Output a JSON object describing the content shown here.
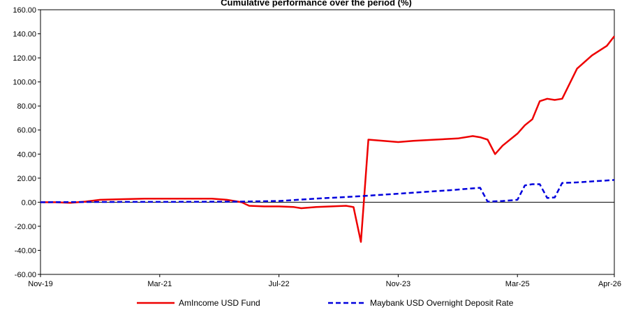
{
  "chart_data": {
    "type": "line",
    "title": "Cumulative performance over the period (%)",
    "xlabel": "",
    "ylabel": "",
    "ylim": [
      -60,
      160
    ],
    "y_ticks": [
      "-60.00",
      "-40.00",
      "-20.00",
      "0.00",
      "20.00",
      "40.00",
      "60.00",
      "80.00",
      "100.00",
      "120.00",
      "140.00",
      "160.00"
    ],
    "x_ticks": [
      "Nov-19",
      "Mar-21",
      "Jul-22",
      "Nov-23",
      "Mar-25",
      "Apr-26"
    ],
    "grid": false,
    "legend_position": "bottom",
    "series": [
      {
        "name": "AmIncome USD Fund",
        "color": "#ee0000",
        "style": "solid",
        "points": [
          [
            "2019-11",
            0
          ],
          [
            "2020-01",
            0
          ],
          [
            "2020-03",
            -0.5
          ],
          [
            "2020-05",
            0.5
          ],
          [
            "2020-07",
            2
          ],
          [
            "2020-10",
            2.5
          ],
          [
            "2021-01",
            3
          ],
          [
            "2021-04",
            3
          ],
          [
            "2021-07",
            3
          ],
          [
            "2021-10",
            3
          ],
          [
            "2021-12",
            2
          ],
          [
            "2022-01",
            1
          ],
          [
            "2022-02",
            0
          ],
          [
            "2022-03",
            -3
          ],
          [
            "2022-05",
            -3.5
          ],
          [
            "2022-07",
            -3.5
          ],
          [
            "2022-09",
            -4
          ],
          [
            "2022-10",
            -5
          ],
          [
            "2022-12",
            -4
          ],
          [
            "2023-02",
            -3.5
          ],
          [
            "2023-04",
            -3
          ],
          [
            "2023-05",
            -4
          ],
          [
            "2023-06",
            -33
          ],
          [
            "2023-07",
            52
          ],
          [
            "2023-09",
            51
          ],
          [
            "2023-11",
            50
          ],
          [
            "2024-01",
            51
          ],
          [
            "2024-04",
            52
          ],
          [
            "2024-07",
            53
          ],
          [
            "2024-09",
            55
          ],
          [
            "2024-10",
            54
          ],
          [
            "2024-11",
            52
          ],
          [
            "2024-12",
            40
          ],
          [
            "2025-01",
            47
          ],
          [
            "2025-03",
            57
          ],
          [
            "2025-04",
            64
          ],
          [
            "2025-05",
            69
          ],
          [
            "2025-06",
            84
          ],
          [
            "2025-07",
            86
          ],
          [
            "2025-08",
            85
          ],
          [
            "2025-09",
            86
          ],
          [
            "2025-11",
            111
          ],
          [
            "2026-01",
            122
          ],
          [
            "2026-03",
            130
          ],
          [
            "2026-04",
            138
          ]
        ]
      },
      {
        "name": "Maybank USD Overnight Deposit Rate",
        "color": "#0000dd",
        "style": "dashed",
        "points": [
          [
            "2019-11",
            0
          ],
          [
            "2020-06",
            0.2
          ],
          [
            "2021-06",
            0.3
          ],
          [
            "2022-02",
            0.5
          ],
          [
            "2022-07",
            1
          ],
          [
            "2022-12",
            3
          ],
          [
            "2023-06",
            5
          ],
          [
            "2023-12",
            7.5
          ],
          [
            "2024-06",
            10
          ],
          [
            "2024-10",
            12
          ],
          [
            "2024-11",
            0.5
          ],
          [
            "2025-01",
            1
          ],
          [
            "2025-03",
            2
          ],
          [
            "2025-04",
            14
          ],
          [
            "2025-05",
            15
          ],
          [
            "2025-06",
            15
          ],
          [
            "2025-07",
            3.5
          ],
          [
            "2025-08",
            4
          ],
          [
            "2025-09",
            16
          ],
          [
            "2025-11",
            16.5
          ],
          [
            "2026-04",
            18.5
          ]
        ]
      }
    ]
  }
}
